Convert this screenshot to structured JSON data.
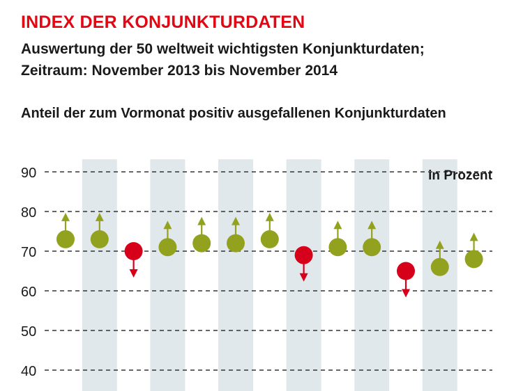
{
  "header": {
    "title": "INDEX DER KONJUNKTURDATEN",
    "subtitle_line1": "Auswertung der 50 weltweit wichtigsten Konjunkturdaten;",
    "subtitle_line2": "Zeitraum: November 2013 bis November 2014",
    "chart_title": "Anteil der zum Vormonat positiv ausgefallenen Konjunkturdaten"
  },
  "colors": {
    "title": "#e30613",
    "up": "#93a21e",
    "down": "#d7001b",
    "band": "#e1e8ec",
    "grid": "#333333"
  },
  "chart_data": {
    "type": "scatter",
    "title": "Anteil der zum Vormonat positiv ausgefallenen Konjunkturdaten",
    "unit_label": "in Prozent",
    "ylim": [
      40,
      90
    ],
    "yticks": [
      90,
      80,
      70,
      60,
      50,
      40
    ],
    "grid": true,
    "alternating_bands": true,
    "values": [
      73,
      73,
      70,
      71,
      72,
      72,
      73,
      69,
      71,
      71,
      65,
      66,
      68
    ],
    "direction": [
      "up",
      "up",
      "down",
      "up",
      "up",
      "up",
      "up",
      "down",
      "up",
      "up",
      "down",
      "up",
      "up"
    ]
  }
}
